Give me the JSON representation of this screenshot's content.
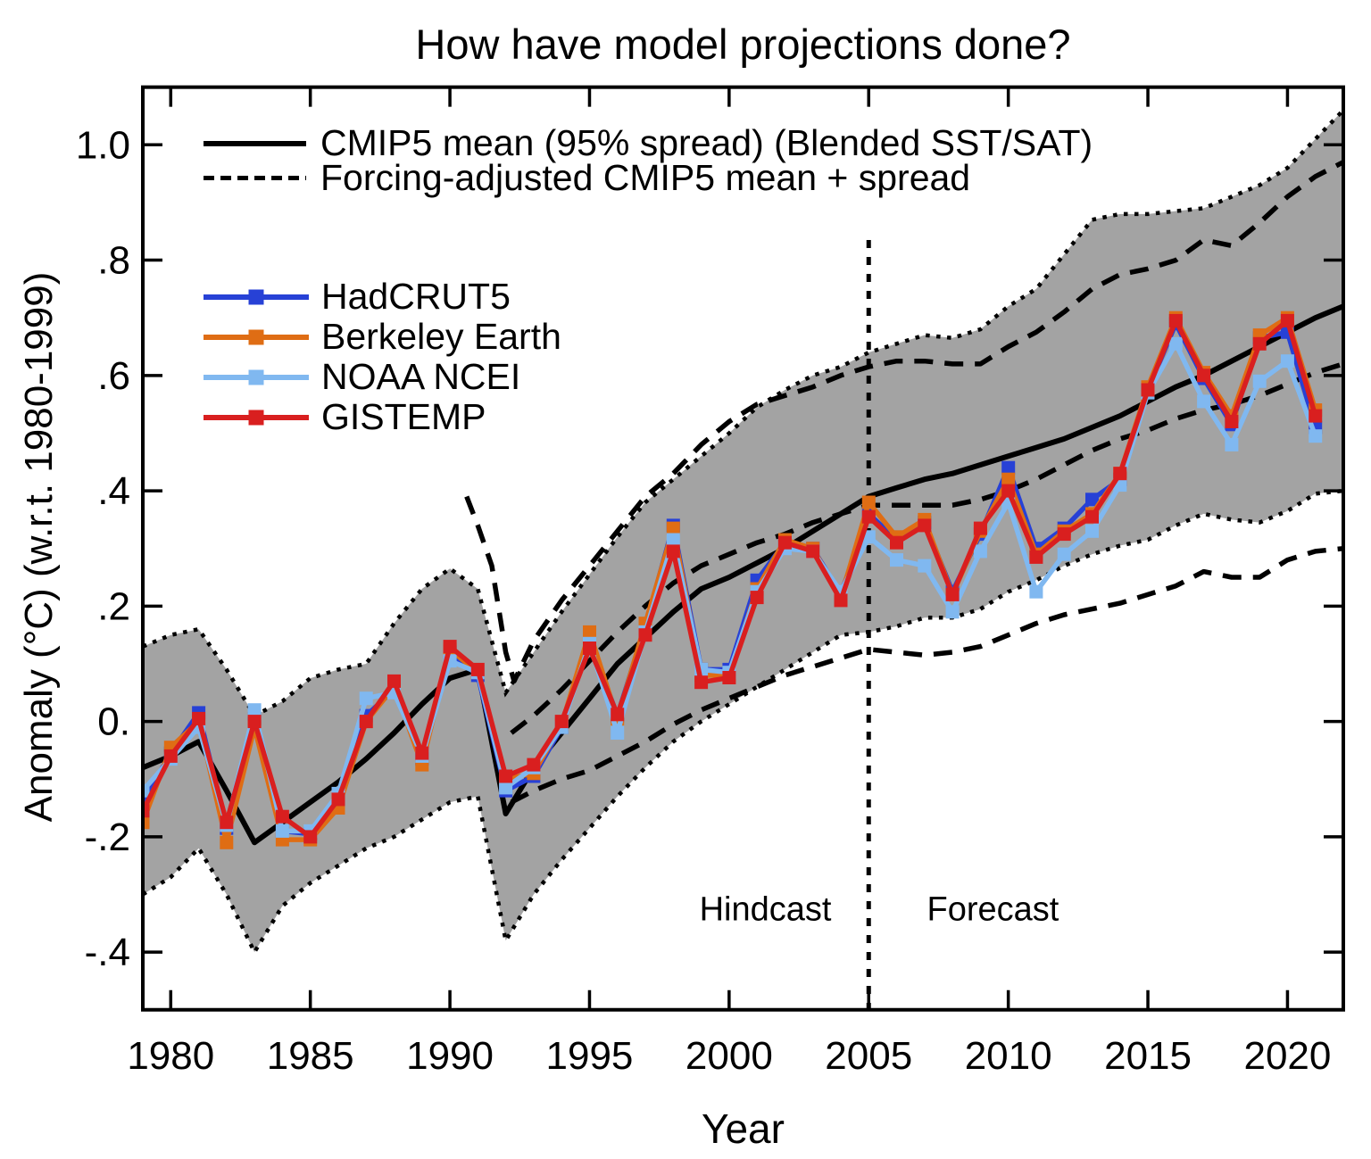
{
  "chart_data": {
    "type": "line",
    "title": "How have model projections done?",
    "xlabel": "Year",
    "ylabel": "Anomaly (°C) (w.r.t. 1980-1999)",
    "xlim": [
      1979,
      2022
    ],
    "ylim": [
      -0.5,
      1.1
    ],
    "xticks": [
      1980,
      1985,
      1990,
      1995,
      2000,
      2005,
      2010,
      2015,
      2020
    ],
    "yticks": [
      {
        "value": 1.0,
        "label": "1.0"
      },
      {
        "value": 0.8,
        "label": ".8"
      },
      {
        "value": 0.6,
        "label": ".6"
      },
      {
        "value": 0.4,
        "label": ".4"
      },
      {
        "value": 0.2,
        "label": ".2"
      },
      {
        "value": 0.0,
        "label": "0."
      },
      {
        "value": -0.2,
        "label": "-.2"
      },
      {
        "value": -0.4,
        "label": "-.4"
      }
    ],
    "model_legend": [
      {
        "style": "solid",
        "label": "CMIP5 mean (95% spread) (Blended SST/SAT)"
      },
      {
        "style": "dashed",
        "label": "Forcing-adjusted CMIP5 mean + spread"
      }
    ],
    "annotations": {
      "hindcast": {
        "text": "Hindcast",
        "year": 2001.3,
        "value": -0.325
      },
      "forecast": {
        "text": "Forecast",
        "year": 2009.45,
        "value": -0.325
      },
      "divider": {
        "year": 2005,
        "from_value": -0.5,
        "to_value": 0.835,
        "style": "dotted"
      }
    },
    "colors": {
      "band_fill": "#a3a3a3",
      "model_black": "#000000"
    },
    "cmip5_band": {
      "years": [
        1979,
        1980,
        1981,
        1982,
        1983,
        1984,
        1985,
        1986,
        1987,
        1988,
        1989,
        1990,
        1991,
        1992,
        1993,
        1994,
        1995,
        1996,
        1997,
        1998,
        1999,
        2000,
        2001,
        2002,
        2003,
        2004,
        2005,
        2006,
        2007,
        2008,
        2009,
        2010,
        2011,
        2012,
        2013,
        2014,
        2015,
        2016,
        2017,
        2018,
        2019,
        2020,
        2021,
        2022
      ],
      "upper": [
        0.13,
        0.15,
        0.16,
        0.09,
        0.01,
        0.035,
        0.075,
        0.09,
        0.1,
        0.17,
        0.23,
        0.265,
        0.23,
        0.05,
        0.12,
        0.19,
        0.255,
        0.32,
        0.38,
        0.42,
        0.46,
        0.5,
        0.545,
        0.575,
        0.6,
        0.615,
        0.64,
        0.655,
        0.67,
        0.665,
        0.68,
        0.72,
        0.75,
        0.81,
        0.87,
        0.88,
        0.88,
        0.885,
        0.89,
        0.91,
        0.93,
        0.96,
        1.01,
        1.06
      ],
      "lower": [
        -0.3,
        -0.27,
        -0.22,
        -0.3,
        -0.4,
        -0.32,
        -0.28,
        -0.25,
        -0.22,
        -0.2,
        -0.17,
        -0.14,
        -0.13,
        -0.38,
        -0.3,
        -0.24,
        -0.185,
        -0.13,
        -0.08,
        -0.035,
        0.0,
        0.03,
        0.06,
        0.09,
        0.12,
        0.15,
        0.155,
        0.165,
        0.18,
        0.18,
        0.195,
        0.225,
        0.245,
        0.27,
        0.29,
        0.305,
        0.315,
        0.34,
        0.36,
        0.35,
        0.345,
        0.365,
        0.395,
        0.4
      ]
    },
    "cmip5_mean": {
      "years": [
        1979,
        1980,
        1981,
        1982,
        1983,
        1984,
        1985,
        1986,
        1987,
        1988,
        1989,
        1990,
        1991,
        1992,
        1993,
        1994,
        1995,
        1996,
        1997,
        1998,
        1999,
        2000,
        2001,
        2002,
        2003,
        2004,
        2005,
        2006,
        2007,
        2008,
        2009,
        2010,
        2011,
        2012,
        2013,
        2014,
        2015,
        2016,
        2017,
        2018,
        2019,
        2020,
        2021,
        2022
      ],
      "values": [
        -0.08,
        -0.06,
        -0.035,
        -0.12,
        -0.21,
        -0.175,
        -0.14,
        -0.105,
        -0.065,
        -0.02,
        0.03,
        0.075,
        0.09,
        -0.16,
        -0.08,
        -0.02,
        0.04,
        0.1,
        0.145,
        0.19,
        0.23,
        0.25,
        0.275,
        0.3,
        0.33,
        0.36,
        0.39,
        0.405,
        0.42,
        0.43,
        0.445,
        0.46,
        0.475,
        0.49,
        0.51,
        0.53,
        0.555,
        0.58,
        0.6,
        0.625,
        0.65,
        0.675,
        0.7,
        0.72
      ]
    },
    "forcing_adjusted": {
      "upper": {
        "x": [
          1990.6,
          1991,
          1991.5,
          1992,
          1992.3,
          1993,
          1994,
          1995,
          1996,
          1997,
          1998,
          1999,
          2000,
          2001,
          2002,
          2003,
          2004,
          2005,
          2006,
          2007,
          2008,
          2009,
          2010,
          2011,
          2012,
          2013,
          2014,
          2015,
          2016,
          2017,
          2018,
          2019,
          2020,
          2021,
          2022
        ],
        "y": [
          0.39,
          0.34,
          0.27,
          0.12,
          0.07,
          0.14,
          0.21,
          0.27,
          0.33,
          0.39,
          0.43,
          0.48,
          0.52,
          0.55,
          0.565,
          0.58,
          0.6,
          0.615,
          0.625,
          0.625,
          0.62,
          0.62,
          0.65,
          0.675,
          0.71,
          0.75,
          0.775,
          0.785,
          0.8,
          0.835,
          0.825,
          0.865,
          0.91,
          0.945,
          0.97
        ]
      },
      "mean": {
        "x": [
          1992.2,
          1993,
          1994,
          1995,
          1996,
          1997,
          1998,
          1999,
          2000,
          2001,
          2002,
          2003,
          2004,
          2005,
          2006,
          2007,
          2008,
          2009,
          2010,
          2011,
          2012,
          2013,
          2014,
          2015,
          2016,
          2017,
          2018,
          2019,
          2020,
          2021,
          2022
        ],
        "y": [
          -0.02,
          0.01,
          0.055,
          0.105,
          0.155,
          0.2,
          0.24,
          0.27,
          0.29,
          0.31,
          0.325,
          0.345,
          0.36,
          0.375,
          0.375,
          0.375,
          0.375,
          0.385,
          0.4,
          0.42,
          0.445,
          0.47,
          0.49,
          0.505,
          0.525,
          0.54,
          0.55,
          0.565,
          0.585,
          0.605,
          0.62
        ]
      },
      "lower": {
        "x": [
          1992.2,
          1993,
          1994,
          1995,
          1996,
          1997,
          1998,
          1999,
          2000,
          2001,
          2002,
          2003,
          2004,
          2005,
          2006,
          2007,
          2008,
          2009,
          2010,
          2011,
          2012,
          2013,
          2014,
          2015,
          2016,
          2017,
          2018,
          2019,
          2020,
          2021,
          2022
        ],
        "y": [
          -0.14,
          -0.12,
          -0.1,
          -0.085,
          -0.06,
          -0.035,
          -0.005,
          0.02,
          0.04,
          0.06,
          0.08,
          0.095,
          0.11,
          0.125,
          0.12,
          0.115,
          0.12,
          0.13,
          0.15,
          0.17,
          0.185,
          0.195,
          0.205,
          0.22,
          0.235,
          0.26,
          0.25,
          0.25,
          0.28,
          0.295,
          0.3
        ]
      }
    },
    "observations": {
      "years": [
        1979,
        1980,
        1981,
        1982,
        1983,
        1984,
        1985,
        1986,
        1987,
        1988,
        1989,
        1990,
        1991,
        1992,
        1993,
        1994,
        1995,
        1996,
        1997,
        1998,
        1999,
        2000,
        2001,
        2002,
        2003,
        2004,
        2005,
        2006,
        2007,
        2008,
        2009,
        2010,
        2011,
        2012,
        2013,
        2014,
        2015,
        2016,
        2017,
        2018,
        2019,
        2020,
        2021
      ],
      "series": [
        {
          "name": "HadCRUT5",
          "color": "#2741d6",
          "values": [
            -0.14,
            -0.055,
            0.015,
            -0.185,
            0.005,
            -0.19,
            -0.195,
            -0.14,
            0.01,
            0.055,
            -0.065,
            0.12,
            0.08,
            -0.12,
            -0.095,
            -0.01,
            0.14,
            0.01,
            0.165,
            0.34,
            0.09,
            0.09,
            0.245,
            0.31,
            0.3,
            0.22,
            0.36,
            0.315,
            0.345,
            0.225,
            0.325,
            0.44,
            0.3,
            0.335,
            0.385,
            0.42,
            0.575,
            0.69,
            0.595,
            0.515,
            0.665,
            0.675,
            0.51
          ]
        },
        {
          "name": "Berkeley Earth",
          "color": "#df6d14",
          "values": [
            -0.175,
            -0.045,
            0.0,
            -0.21,
            -0.01,
            -0.205,
            -0.205,
            -0.15,
            0.0,
            0.06,
            -0.075,
            0.125,
            0.085,
            -0.1,
            -0.09,
            -0.005,
            0.155,
            0.005,
            0.17,
            0.335,
            0.08,
            0.08,
            0.23,
            0.315,
            0.3,
            0.215,
            0.38,
            0.32,
            0.35,
            0.22,
            0.33,
            0.42,
            0.29,
            0.33,
            0.36,
            0.43,
            0.58,
            0.7,
            0.605,
            0.53,
            0.67,
            0.7,
            0.54
          ]
        },
        {
          "name": "NOAA NCEI",
          "color": "#80b8f0",
          "values": [
            -0.12,
            -0.065,
            -0.01,
            -0.18,
            0.02,
            -0.19,
            -0.19,
            -0.125,
            0.04,
            0.05,
            -0.06,
            0.105,
            0.085,
            -0.115,
            -0.08,
            -0.01,
            0.135,
            -0.02,
            0.155,
            0.315,
            0.09,
            0.085,
            0.225,
            0.3,
            0.295,
            0.225,
            0.32,
            0.28,
            0.27,
            0.19,
            0.295,
            0.38,
            0.225,
            0.29,
            0.33,
            0.41,
            0.57,
            0.655,
            0.555,
            0.48,
            0.59,
            0.625,
            0.495
          ]
        },
        {
          "name": "GISTEMP",
          "color": "#d91f1f",
          "values": [
            -0.155,
            -0.06,
            0.005,
            -0.175,
            0.0,
            -0.165,
            -0.2,
            -0.135,
            0.0,
            0.07,
            -0.055,
            0.13,
            0.09,
            -0.095,
            -0.075,
            0.0,
            0.127,
            0.012,
            0.15,
            0.295,
            0.068,
            0.076,
            0.215,
            0.31,
            0.295,
            0.21,
            0.355,
            0.31,
            0.34,
            0.22,
            0.335,
            0.4,
            0.285,
            0.325,
            0.355,
            0.43,
            0.575,
            0.695,
            0.6,
            0.52,
            0.655,
            0.695,
            0.53
          ]
        }
      ]
    }
  }
}
